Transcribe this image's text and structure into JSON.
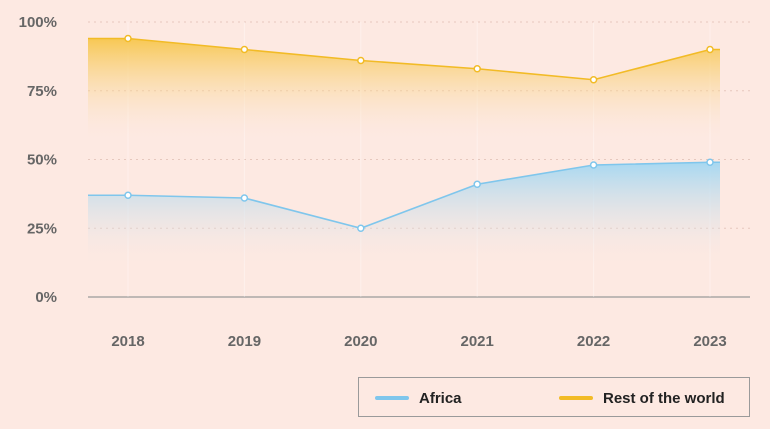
{
  "chart_data": {
    "type": "area",
    "title": "",
    "xlabel": "",
    "ylabel": "",
    "categories": [
      "2018",
      "2019",
      "2020",
      "2021",
      "2022",
      "2023"
    ],
    "ylim": [
      0,
      100
    ],
    "y_ticks": [
      "0%",
      "25%",
      "50%",
      "75%",
      "100%"
    ],
    "y_tick_values": [
      0,
      25,
      50,
      75,
      100
    ],
    "grid": true,
    "legend_position": "bottom-right",
    "series": [
      {
        "name": "Africa",
        "color": "#7fc6ec",
        "values": [
          37,
          36,
          25,
          41,
          48,
          49
        ]
      },
      {
        "name": "Rest of the world",
        "color": "#f2bb26",
        "values": [
          94,
          90,
          86,
          83,
          79,
          90
        ]
      }
    ]
  }
}
